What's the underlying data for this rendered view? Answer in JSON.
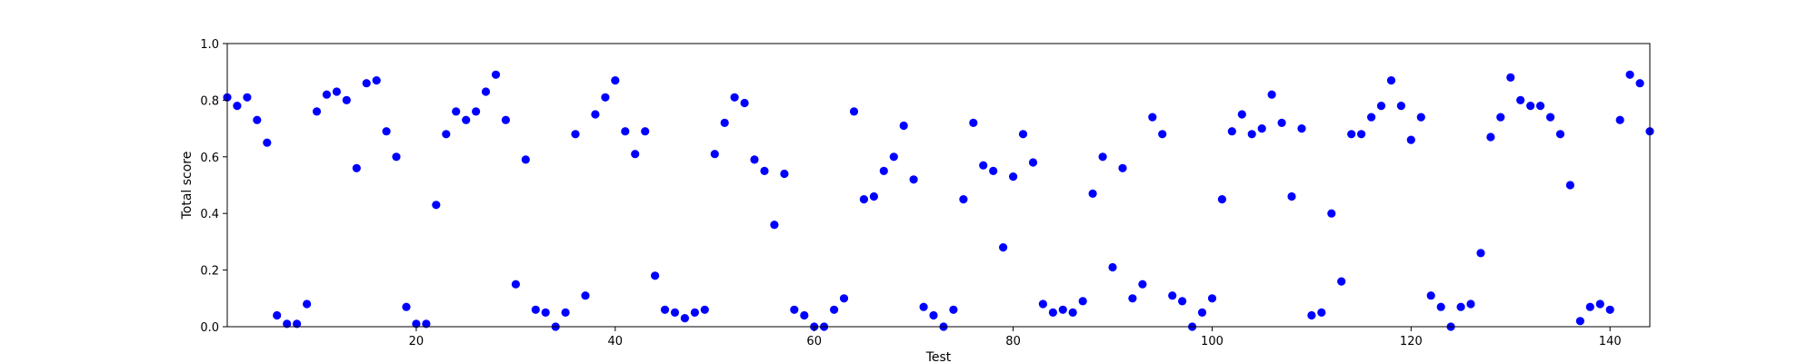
{
  "chart_data": {
    "type": "scatter",
    "xlabel": "Test",
    "ylabel": "Total score",
    "xlim": [
      1,
      144
    ],
    "ylim": [
      0,
      1.0
    ],
    "xticks": [
      20,
      40,
      60,
      80,
      100,
      120,
      140
    ],
    "xtick_labels": [
      "20",
      "40",
      "60",
      "80",
      "100",
      "120",
      "140"
    ],
    "yticks": [
      0,
      0.2,
      0.4,
      0.6,
      0.8,
      1.0
    ],
    "ytick_labels": [
      "0.0",
      "0.2",
      "0.4",
      "0.6",
      "0.8",
      "1.0"
    ],
    "grid": false,
    "marker_color": "#0000ff",
    "series": [
      {
        "x": [
          1,
          2,
          3,
          4,
          5,
          6,
          7,
          8,
          9,
          10,
          11,
          12,
          13,
          14,
          15,
          16,
          17,
          18,
          19,
          20,
          21,
          22,
          23,
          24,
          25,
          26,
          27,
          28,
          29,
          30,
          31,
          32,
          33,
          34,
          35,
          36,
          37,
          38,
          39,
          40,
          41,
          42,
          43,
          44,
          45,
          46,
          47,
          48,
          49,
          50,
          51,
          52,
          53,
          54,
          55,
          56,
          57,
          58,
          59,
          60,
          61,
          62,
          63,
          64,
          65,
          66,
          67,
          68,
          69,
          70,
          71,
          72,
          73,
          74,
          75,
          76,
          77,
          78,
          79,
          80,
          81,
          82,
          83,
          84,
          85,
          86,
          87,
          88,
          89,
          90,
          91,
          92,
          93,
          94,
          95,
          96,
          97,
          98,
          99,
          100,
          101,
          102,
          103,
          104,
          105,
          106,
          107,
          108,
          109,
          110,
          111,
          112,
          113,
          114,
          115,
          116,
          117,
          118,
          119,
          120,
          121,
          122,
          123,
          124,
          125,
          126,
          127,
          128,
          129,
          130,
          131,
          132,
          133,
          134,
          135,
          136,
          137,
          138,
          139,
          140,
          141,
          142,
          143,
          144
        ],
        "y": [
          0.81,
          0.78,
          0.81,
          0.73,
          0.65,
          0.04,
          0.01,
          0.01,
          0.08,
          0.76,
          0.82,
          0.83,
          0.8,
          0.56,
          0.86,
          0.87,
          0.69,
          0.6,
          0.07,
          0.01,
          0.01,
          0.43,
          0.68,
          0.76,
          0.73,
          0.76,
          0.83,
          0.89,
          0.73,
          0.15,
          0.59,
          0.06,
          0.05,
          0.0,
          0.05,
          0.68,
          0.11,
          0.75,
          0.81,
          0.87,
          0.69,
          0.61,
          0.69,
          0.18,
          0.06,
          0.05,
          0.03,
          0.05,
          0.06,
          0.61,
          0.72,
          0.81,
          0.79,
          0.59,
          0.55,
          0.36,
          0.54,
          0.06,
          0.04,
          0.0,
          0.0,
          0.06,
          0.1,
          0.76,
          0.45,
          0.46,
          0.55,
          0.6,
          0.71,
          0.52,
          0.07,
          0.04,
          0.0,
          0.06,
          0.45,
          0.72,
          0.57,
          0.55,
          0.28,
          0.53,
          0.68,
          0.58,
          0.08,
          0.05,
          0.06,
          0.05,
          0.09,
          0.47,
          0.6,
          0.21,
          0.56,
          0.1,
          0.15,
          0.74,
          0.68,
          0.11,
          0.09,
          0.0,
          0.05,
          0.1,
          0.45,
          0.69,
          0.75,
          0.68,
          0.7,
          0.82,
          0.72,
          0.46,
          0.7,
          0.04,
          0.05,
          0.4,
          0.16,
          0.68,
          0.68,
          0.74,
          0.78,
          0.87,
          0.78,
          0.66,
          0.74,
          0.11,
          0.07,
          0.0,
          0.07,
          0.08,
          0.26,
          0.67,
          0.74,
          0.88,
          0.8,
          0.78,
          0.78,
          0.74,
          0.68,
          0.5,
          0.02,
          0.07,
          0.08,
          0.06,
          0.73,
          0.89,
          0.86,
          0.69
        ]
      }
    ]
  }
}
